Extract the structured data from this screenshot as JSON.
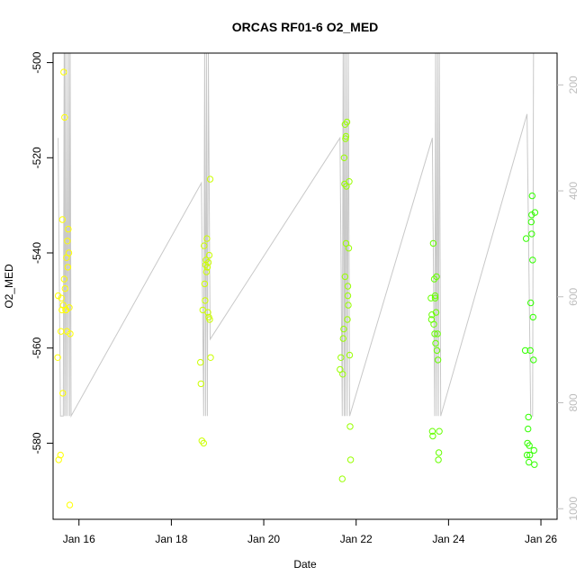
{
  "chart_data": {
    "type": "scatter",
    "title": "ORCAS RF01-6 O2_MED",
    "xlabel": "Date",
    "ylabel": "O2_MED",
    "xlim": [
      15.44,
      26.35
    ],
    "ylim": [
      -596,
      -498
    ],
    "x_ticks": [
      {
        "value": 16,
        "label": "Jan 16"
      },
      {
        "value": 18,
        "label": "Jan 18"
      },
      {
        "value": 20,
        "label": "Jan 20"
      },
      {
        "value": 22,
        "label": "Jan 22"
      },
      {
        "value": 24,
        "label": "Jan 24"
      },
      {
        "value": 26,
        "label": "Jan 26"
      }
    ],
    "y_ticks": [
      {
        "value": -500,
        "label": "-500"
      },
      {
        "value": -520,
        "label": "-520"
      },
      {
        "value": -540,
        "label": "-540"
      },
      {
        "value": -560,
        "label": "-560"
      },
      {
        "value": -580,
        "label": "-580"
      }
    ],
    "y2": {
      "ylim": [
        1020,
        140
      ],
      "ticks": [
        {
          "value": 200,
          "label": "200"
        },
        {
          "value": 400,
          "label": "400"
        },
        {
          "value": 600,
          "label": "600"
        },
        {
          "value": 800,
          "label": "800"
        },
        {
          "value": 1000,
          "label": "1000"
        }
      ],
      "color": "#bdbdbd"
    },
    "grid": false,
    "line_color": "#c8c8c8",
    "secondary_line": [
      {
        "x": 15.55,
        "y2": 300
      },
      {
        "x": 15.6,
        "y2": 825
      },
      {
        "x": 15.66,
        "y2": 825
      },
      {
        "x": 15.68,
        "y2": 140
      },
      {
        "x": 15.69,
        "y2": 825
      },
      {
        "x": 15.7,
        "y2": 140
      },
      {
        "x": 15.72,
        "y2": 825
      },
      {
        "x": 15.74,
        "y2": 140
      },
      {
        "x": 15.76,
        "y2": 825
      },
      {
        "x": 15.78,
        "y2": 140
      },
      {
        "x": 15.8,
        "y2": 825
      },
      {
        "x": 15.81,
        "y2": 140
      },
      {
        "x": 15.83,
        "y2": 825
      },
      {
        "x": 18.65,
        "y2": 385
      },
      {
        "x": 18.7,
        "y2": 825
      },
      {
        "x": 18.72,
        "y2": 140
      },
      {
        "x": 18.74,
        "y2": 825
      },
      {
        "x": 18.76,
        "y2": 140
      },
      {
        "x": 18.78,
        "y2": 825
      },
      {
        "x": 18.8,
        "y2": 140
      },
      {
        "x": 18.84,
        "y2": 680
      },
      {
        "x": 21.65,
        "y2": 300
      },
      {
        "x": 21.7,
        "y2": 825
      },
      {
        "x": 21.72,
        "y2": 140
      },
      {
        "x": 21.74,
        "y2": 825
      },
      {
        "x": 21.75,
        "y2": 140
      },
      {
        "x": 21.77,
        "y2": 825
      },
      {
        "x": 21.79,
        "y2": 140
      },
      {
        "x": 21.81,
        "y2": 825
      },
      {
        "x": 21.83,
        "y2": 140
      },
      {
        "x": 21.86,
        "y2": 825
      },
      {
        "x": 23.65,
        "y2": 300
      },
      {
        "x": 23.7,
        "y2": 825
      },
      {
        "x": 23.72,
        "y2": 140
      },
      {
        "x": 23.74,
        "y2": 825
      },
      {
        "x": 23.76,
        "y2": 140
      },
      {
        "x": 23.78,
        "y2": 825
      },
      {
        "x": 23.8,
        "y2": 140
      },
      {
        "x": 23.83,
        "y2": 825
      },
      {
        "x": 25.7,
        "y2": 255
      },
      {
        "x": 25.78,
        "y2": 825
      },
      {
        "x": 25.82,
        "y2": 825
      },
      {
        "x": 25.84,
        "y2": 140
      }
    ],
    "series": [
      {
        "color": "#ffff00",
        "points": [
          {
            "x": 15.54,
            "y": -562
          },
          {
            "x": 15.55,
            "y": -549
          },
          {
            "x": 15.56,
            "y": -583.5
          },
          {
            "x": 15.6,
            "y": -582.5
          },
          {
            "x": 15.61,
            "y": -556.5
          },
          {
            "x": 15.62,
            "y": -549.5
          },
          {
            "x": 15.63,
            "y": -552
          },
          {
            "x": 15.64,
            "y": -533
          },
          {
            "x": 15.65,
            "y": -569.5
          },
          {
            "x": 15.66,
            "y": -551
          },
          {
            "x": 15.67,
            "y": -502
          },
          {
            "x": 15.68,
            "y": -545.5
          },
          {
            "x": 15.69,
            "y": -511.5
          },
          {
            "x": 15.7,
            "y": -547.5
          },
          {
            "x": 15.71,
            "y": -552
          },
          {
            "x": 15.72,
            "y": -552
          },
          {
            "x": 15.73,
            "y": -541
          },
          {
            "x": 15.74,
            "y": -556.5
          },
          {
            "x": 15.75,
            "y": -537.5
          },
          {
            "x": 15.76,
            "y": -543
          },
          {
            "x": 15.77,
            "y": -535
          },
          {
            "x": 15.78,
            "y": -540
          },
          {
            "x": 15.79,
            "y": -551.5
          },
          {
            "x": 15.8,
            "y": -593
          },
          {
            "x": 15.81,
            "y": -557
          }
        ]
      },
      {
        "color": "#ccff00",
        "points": [
          {
            "x": 18.63,
            "y": -563
          },
          {
            "x": 18.64,
            "y": -567.5
          },
          {
            "x": 18.66,
            "y": -579.5
          },
          {
            "x": 18.68,
            "y": -552
          },
          {
            "x": 18.7,
            "y": -580
          },
          {
            "x": 18.71,
            "y": -538.5
          },
          {
            "x": 18.72,
            "y": -546.5
          },
          {
            "x": 18.73,
            "y": -550
          },
          {
            "x": 18.74,
            "y": -542.5
          },
          {
            "x": 18.75,
            "y": -541.5
          },
          {
            "x": 18.76,
            "y": -544
          },
          {
            "x": 18.77,
            "y": -537
          },
          {
            "x": 18.78,
            "y": -543
          },
          {
            "x": 18.79,
            "y": -552.5
          },
          {
            "x": 18.8,
            "y": -542
          },
          {
            "x": 18.81,
            "y": -553.5
          },
          {
            "x": 18.82,
            "y": -540.5
          },
          {
            "x": 18.83,
            "y": -554
          },
          {
            "x": 18.84,
            "y": -524.5
          },
          {
            "x": 18.85,
            "y": -562
          }
        ]
      },
      {
        "color": "#99ff00",
        "points": [
          {
            "x": 21.65,
            "y": -564.5
          },
          {
            "x": 21.67,
            "y": -562
          },
          {
            "x": 21.7,
            "y": -587.5
          },
          {
            "x": 21.71,
            "y": -565.5
          },
          {
            "x": 21.72,
            "y": -558
          },
          {
            "x": 21.73,
            "y": -556
          },
          {
            "x": 21.74,
            "y": -520
          },
          {
            "x": 21.75,
            "y": -525.5
          },
          {
            "x": 21.76,
            "y": -513
          },
          {
            "x": 21.77,
            "y": -516
          },
          {
            "x": 21.78,
            "y": -538
          },
          {
            "x": 21.79,
            "y": -526
          },
          {
            "x": 21.8,
            "y": -512.5
          },
          {
            "x": 21.81,
            "y": -554
          },
          {
            "x": 21.82,
            "y": -547
          },
          {
            "x": 21.83,
            "y": -551
          },
          {
            "x": 21.84,
            "y": -539
          },
          {
            "x": 21.85,
            "y": -525
          },
          {
            "x": 21.86,
            "y": -561.5
          },
          {
            "x": 21.87,
            "y": -576.5
          },
          {
            "x": 21.88,
            "y": -583.5
          },
          {
            "x": 21.76,
            "y": -545
          },
          {
            "x": 21.78,
            "y": -515.5
          },
          {
            "x": 21.82,
            "y": -549
          }
        ]
      },
      {
        "color": "#66ff00",
        "points": [
          {
            "x": 23.62,
            "y": -549.5
          },
          {
            "x": 23.63,
            "y": -554
          },
          {
            "x": 23.65,
            "y": -577.5
          },
          {
            "x": 23.66,
            "y": -578.5
          },
          {
            "x": 23.67,
            "y": -538
          },
          {
            "x": 23.68,
            "y": -555
          },
          {
            "x": 23.69,
            "y": -545.5
          },
          {
            "x": 23.7,
            "y": -557
          },
          {
            "x": 23.71,
            "y": -549
          },
          {
            "x": 23.72,
            "y": -559
          },
          {
            "x": 23.73,
            "y": -552.5
          },
          {
            "x": 23.74,
            "y": -545
          },
          {
            "x": 23.75,
            "y": -560.5
          },
          {
            "x": 23.76,
            "y": -557
          },
          {
            "x": 23.77,
            "y": -562.5
          },
          {
            "x": 23.78,
            "y": -583.5
          },
          {
            "x": 23.79,
            "y": -582
          },
          {
            "x": 23.8,
            "y": -577.5
          },
          {
            "x": 23.64,
            "y": -553
          },
          {
            "x": 23.71,
            "y": -549.5
          }
        ]
      },
      {
        "color": "#33ff00",
        "points": [
          {
            "x": 25.66,
            "y": -560.5
          },
          {
            "x": 25.68,
            "y": -537
          },
          {
            "x": 25.7,
            "y": -582.5
          },
          {
            "x": 25.71,
            "y": -580
          },
          {
            "x": 25.72,
            "y": -577
          },
          {
            "x": 25.73,
            "y": -574.5
          },
          {
            "x": 25.74,
            "y": -584
          },
          {
            "x": 25.75,
            "y": -580.5
          },
          {
            "x": 25.76,
            "y": -582.5
          },
          {
            "x": 25.77,
            "y": -560.5
          },
          {
            "x": 25.78,
            "y": -550.5
          },
          {
            "x": 25.79,
            "y": -533.5
          },
          {
            "x": 25.8,
            "y": -536
          },
          {
            "x": 25.81,
            "y": -528
          },
          {
            "x": 25.82,
            "y": -541.5
          },
          {
            "x": 25.83,
            "y": -553.5
          },
          {
            "x": 25.84,
            "y": -562.5
          },
          {
            "x": 25.85,
            "y": -581.5
          },
          {
            "x": 25.86,
            "y": -584.5
          },
          {
            "x": 25.87,
            "y": -531.5
          },
          {
            "x": 25.8,
            "y": -532
          }
        ]
      }
    ]
  }
}
